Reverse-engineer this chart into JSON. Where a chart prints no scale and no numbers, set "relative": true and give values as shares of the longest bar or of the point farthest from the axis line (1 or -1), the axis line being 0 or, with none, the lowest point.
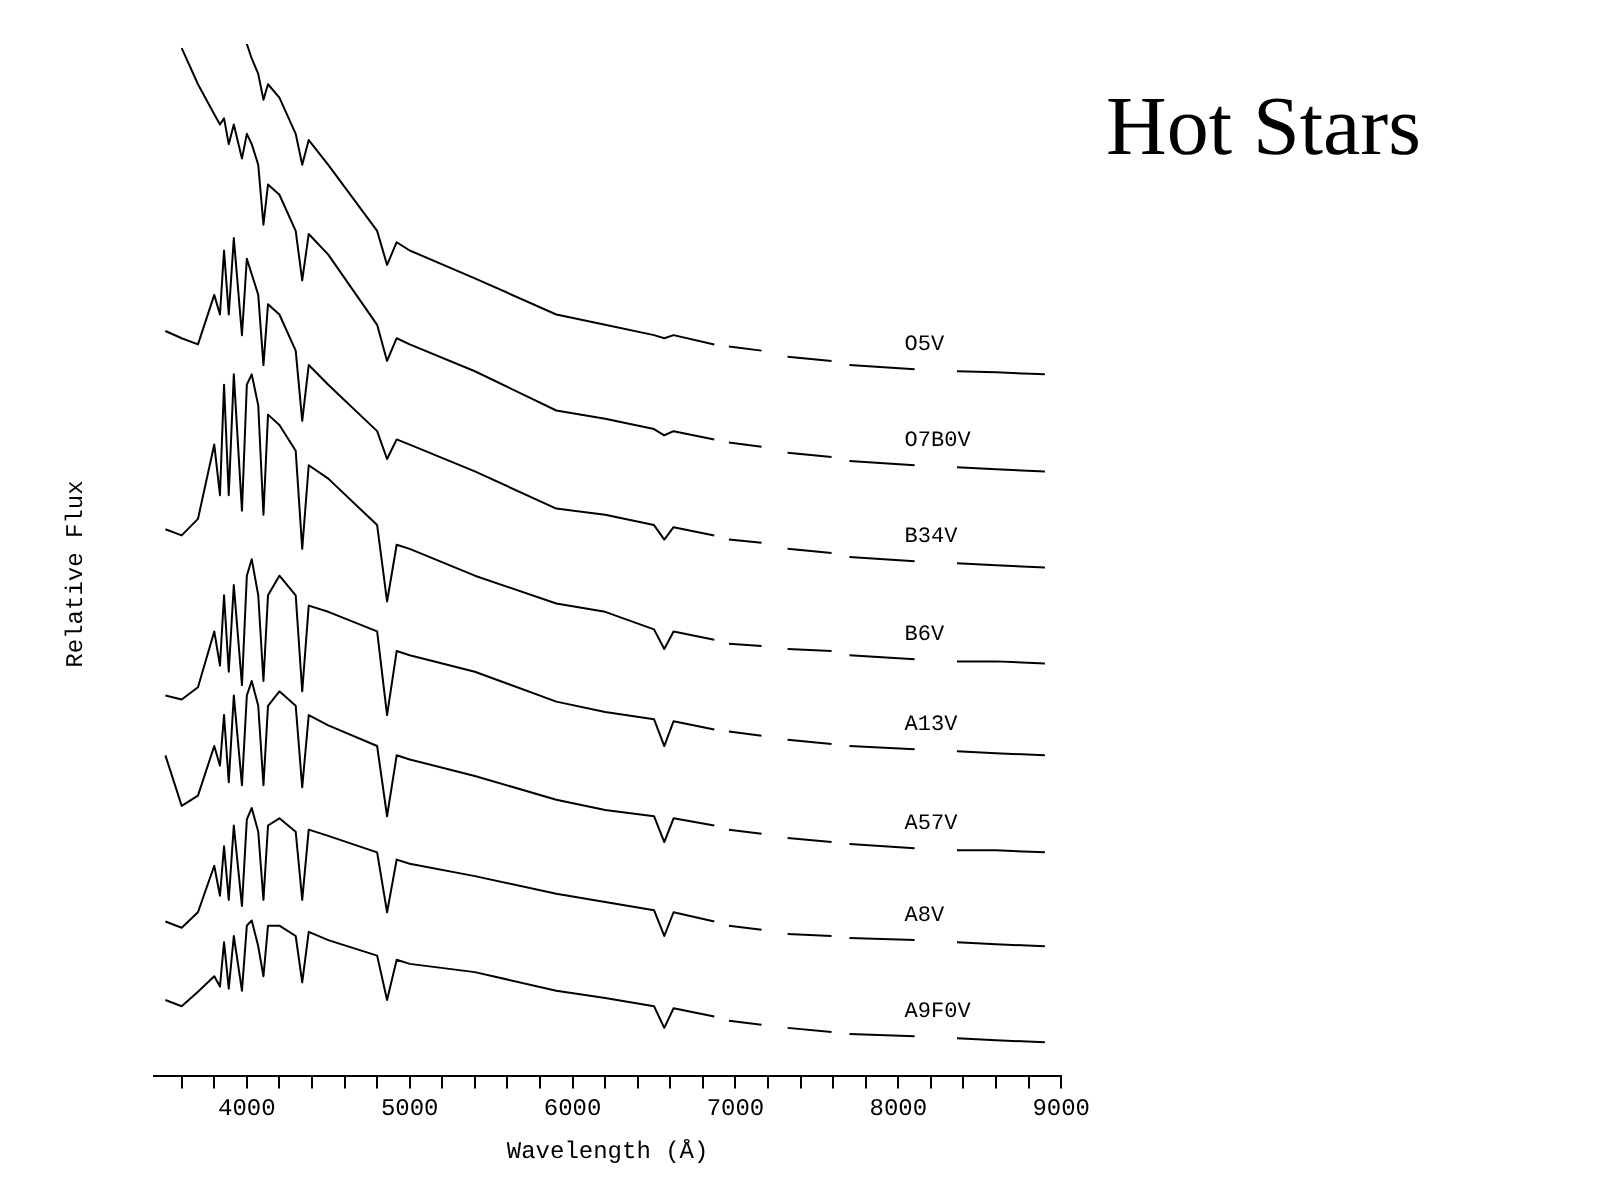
{
  "chart_data": {
    "type": "line",
    "title": "Hot Stars",
    "xlabel": "Wavelength (Å)",
    "ylabel": "Relative Flux",
    "relative": true,
    "legend": false,
    "grid": false,
    "marker": "none",
    "line_style": "solid",
    "xlim": [
      3430,
      9000
    ],
    "xticks": [
      {
        "value": 3600,
        "label": null
      },
      {
        "value": 3800,
        "label": null
      },
      4000,
      {
        "value": 4200,
        "label": null
      },
      {
        "value": 4400,
        "label": null
      },
      {
        "value": 4600,
        "label": null
      },
      {
        "value": 4800,
        "label": null
      },
      5000,
      {
        "value": 5200,
        "label": null
      },
      {
        "value": 5400,
        "label": null
      },
      {
        "value": 5600,
        "label": null
      },
      {
        "value": 5800,
        "label": null
      },
      6000,
      {
        "value": 6200,
        "label": null
      },
      {
        "value": 6400,
        "label": null
      },
      {
        "value": 6600,
        "label": null
      },
      {
        "value": 6800,
        "label": null
      },
      7000,
      {
        "value": 7200,
        "label": null
      },
      {
        "value": 7400,
        "label": null
      },
      {
        "value": 7600,
        "label": null
      },
      {
        "value": 7800,
        "label": null
      },
      8000,
      {
        "value": 8200,
        "label": null
      },
      {
        "value": 8400,
        "label": null
      },
      {
        "value": 8600,
        "label": null
      },
      {
        "value": 8800,
        "label": null
      },
      9000
    ],
    "x": [
      3500,
      3600,
      3700,
      3800,
      3835,
      3860,
      3889,
      3920,
      3970,
      4000,
      4030,
      4070,
      4102,
      4130,
      4200,
      4300,
      4340,
      4380,
      4500,
      4800,
      4861,
      4920,
      5000,
      5400,
      5900,
      6200,
      6500,
      6563,
      6620,
      6870,
      6915,
      6960,
      7160,
      7240,
      7320,
      7590,
      7645,
      7700,
      8100,
      8230,
      8360,
      8600,
      8900
    ],
    "series": [
      {
        "name": "O5V",
        "color": "#000000",
        "values": [
          null,
          null,
          null,
          null,
          null,
          null,
          null,
          null,
          null,
          1.0,
          0.986,
          0.971,
          0.946,
          0.961,
          0.948,
          0.913,
          0.883,
          0.907,
          0.883,
          0.819,
          0.786,
          0.808,
          0.8,
          0.773,
          0.738,
          0.728,
          0.718,
          0.715,
          0.718,
          0.709,
          null,
          0.707,
          0.703,
          null,
          0.697,
          0.693,
          null,
          0.689,
          0.685,
          null,
          0.683,
          0.682,
          0.68
        ]
      },
      {
        "name": "O7B0V",
        "color": "#000000",
        "values": [
          null,
          0.996,
          0.961,
          0.932,
          0.922,
          0.928,
          0.903,
          0.922,
          0.889,
          0.913,
          0.903,
          0.883,
          0.825,
          0.864,
          0.854,
          0.819,
          0.771,
          0.816,
          0.796,
          0.728,
          0.693,
          0.715,
          0.709,
          0.683,
          0.645,
          0.637,
          0.627,
          0.621,
          0.625,
          0.617,
          null,
          0.614,
          0.61,
          null,
          0.604,
          0.6,
          null,
          0.596,
          0.592,
          null,
          0.59,
          0.588,
          0.586
        ]
      },
      {
        "name": "B34V",
        "color": "#000000",
        "values": [
          0.722,
          0.715,
          0.709,
          0.757,
          0.738,
          0.8,
          0.738,
          0.812,
          0.718,
          0.792,
          0.777,
          0.757,
          0.689,
          0.748,
          0.738,
          0.703,
          0.635,
          0.689,
          0.67,
          0.625,
          0.598,
          0.617,
          0.612,
          0.586,
          0.55,
          0.544,
          0.534,
          0.52,
          0.532,
          0.524,
          null,
          0.52,
          0.517,
          null,
          0.511,
          0.507,
          null,
          0.503,
          0.499,
          null,
          0.497,
          0.495,
          0.493
        ]
      },
      {
        "name": "B6V",
        "color": "#000000",
        "values": [
          0.53,
          0.524,
          0.54,
          0.612,
          0.563,
          0.67,
          0.563,
          0.68,
          0.548,
          0.67,
          0.68,
          0.65,
          0.544,
          0.641,
          0.631,
          0.606,
          0.511,
          0.592,
          0.579,
          0.534,
          0.46,
          0.515,
          0.511,
          0.485,
          0.458,
          0.45,
          0.433,
          0.414,
          0.431,
          0.423,
          null,
          0.419,
          0.417,
          null,
          0.414,
          0.412,
          null,
          0.408,
          0.404,
          null,
          0.402,
          0.402,
          0.4
        ]
      },
      {
        "name": "A13V",
        "color": "#000000",
        "values": [
          0.369,
          0.365,
          0.377,
          0.431,
          0.398,
          0.466,
          0.392,
          0.476,
          0.379,
          0.485,
          0.501,
          0.466,
          0.383,
          0.466,
          0.485,
          0.466,
          0.373,
          0.456,
          0.45,
          0.431,
          0.35,
          0.412,
          0.408,
          0.392,
          0.363,
          0.353,
          0.346,
          0.32,
          0.344,
          0.336,
          null,
          0.334,
          0.33,
          null,
          0.326,
          0.322,
          null,
          0.32,
          0.317,
          null,
          0.315,
          0.313,
          0.311
        ]
      },
      {
        "name": "A57V",
        "color": "#000000",
        "values": [
          0.311,
          0.262,
          0.272,
          0.32,
          0.301,
          0.35,
          0.285,
          0.369,
          0.282,
          0.369,
          0.383,
          0.359,
          0.282,
          0.359,
          0.373,
          0.359,
          0.28,
          0.35,
          0.34,
          0.32,
          0.252,
          0.311,
          0.307,
          0.291,
          0.268,
          0.258,
          0.252,
          0.227,
          0.25,
          0.243,
          null,
          0.239,
          0.235,
          null,
          0.231,
          0.227,
          null,
          0.225,
          0.221,
          null,
          0.219,
          0.219,
          0.217
        ]
      },
      {
        "name": "A8V",
        "color": "#000000",
        "values": [
          0.15,
          0.144,
          0.159,
          0.204,
          0.175,
          0.223,
          0.171,
          0.243,
          0.165,
          0.249,
          0.26,
          0.237,
          0.171,
          0.243,
          0.25,
          0.237,
          0.171,
          0.239,
          0.233,
          0.217,
          0.159,
          0.21,
          0.206,
          0.194,
          0.177,
          0.169,
          0.161,
          0.136,
          0.159,
          0.15,
          null,
          0.146,
          0.142,
          null,
          0.138,
          0.136,
          null,
          0.134,
          0.132,
          null,
          0.13,
          0.128,
          0.126
        ]
      },
      {
        "name": "A9F0V",
        "color": "#000000",
        "values": [
          0.074,
          0.068,
          0.082,
          0.097,
          0.087,
          0.13,
          0.085,
          0.136,
          0.083,
          0.146,
          0.151,
          0.126,
          0.097,
          0.146,
          0.146,
          0.136,
          0.091,
          0.14,
          0.132,
          0.117,
          0.074,
          0.113,
          0.109,
          0.101,
          0.083,
          0.076,
          0.068,
          0.047,
          0.066,
          0.058,
          null,
          0.054,
          0.05,
          null,
          0.047,
          0.043,
          null,
          0.041,
          0.039,
          null,
          0.037,
          0.035,
          0.033
        ]
      }
    ]
  }
}
